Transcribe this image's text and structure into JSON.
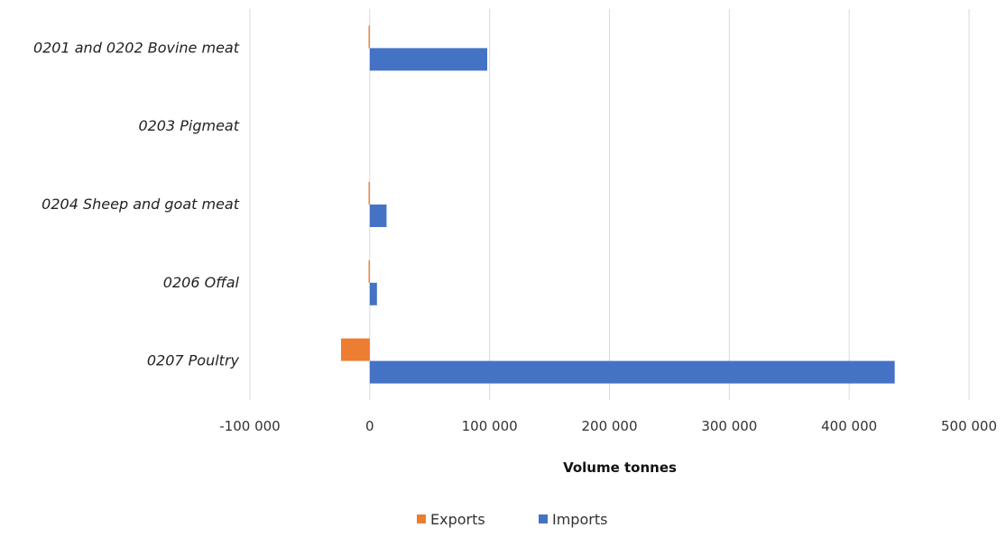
{
  "chart_data": {
    "type": "bar",
    "orientation": "horizontal",
    "title": "",
    "xlabel": "Volume tonnes",
    "ylabel": "",
    "categories": [
      "0201 and 0202 Bovine meat",
      "0203 Pigmeat",
      "0204 Sheep and goat meat",
      "0206 Offal",
      "0207 Poultry"
    ],
    "series": [
      {
        "name": "Exports",
        "color": "#ED7D31",
        "values": [
          -1000,
          0,
          -1000,
          -1000,
          -24000
        ]
      },
      {
        "name": "Imports",
        "color": "#4472C4",
        "values": [
          98000,
          0,
          14000,
          6000,
          438000
        ]
      }
    ],
    "xlim": [
      -100000,
      500000
    ],
    "xticks": [
      -100000,
      0,
      100000,
      200000,
      300000,
      400000,
      500000
    ],
    "xtick_labels": [
      "-100 000",
      "0",
      "100 000",
      "200 000",
      "300 000",
      "400 000",
      "500 000"
    ],
    "grid": true,
    "legend": "bottom"
  }
}
